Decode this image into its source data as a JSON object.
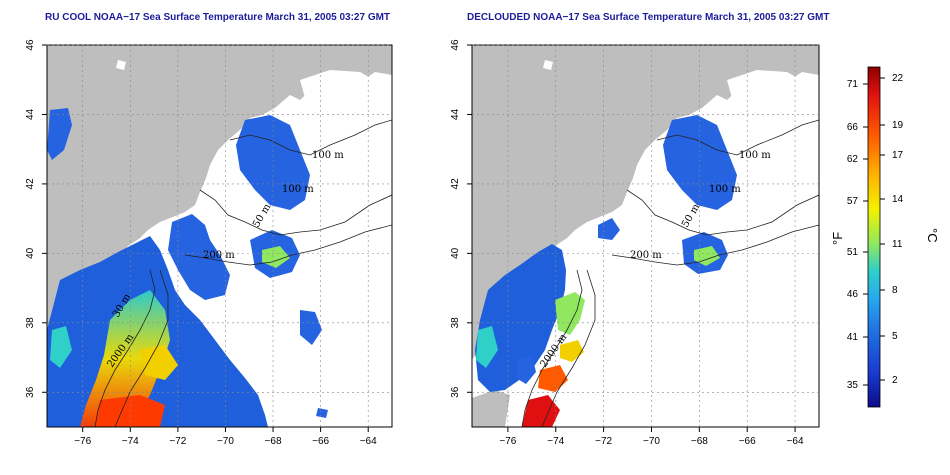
{
  "titles": {
    "left": "RU COOL NOAA−17 Sea Surface Temperature March 31, 2005 03:27 GMT",
    "right": "DECLOUDED NOAA−17 Sea Surface Temperature March 31, 2005 03:27 GMT"
  },
  "map": {
    "lon_ticks": [
      -76,
      -74,
      -72,
      -70,
      -68,
      -66,
      -64
    ],
    "lat_ticks": [
      36,
      38,
      40,
      42,
      44,
      46
    ],
    "lon_tick_labels": [
      "−76",
      "−74",
      "−72",
      "−70",
      "−68",
      "−66",
      "−64"
    ],
    "lat_tick_labels": [
      "36",
      "38",
      "40",
      "42",
      "44",
      "46"
    ],
    "lon_range": [
      -77.5,
      -63.0
    ],
    "lat_range": [
      35.0,
      46.0
    ],
    "land_color": "#bebebe",
    "grid": "dotted"
  },
  "isobaths": {
    "left": {
      "m100": "100 m",
      "m50a": "100 m",
      "m50b": "50 m",
      "m200": "200 m",
      "m30": "30 m",
      "m2000": "2000 m"
    },
    "right": {
      "m100": "100 m",
      "m50a": "100 m",
      "m50b": "50 m",
      "m200": "200 m",
      "m2000": "2000 m"
    }
  },
  "colorbar": {
    "fahrenheit_label": "°F",
    "celsius_label": "°C",
    "fahrenheit_ticks": [
      "71",
      "66",
      "62",
      "57",
      "51",
      "46",
      "41",
      "35"
    ],
    "celsius_ticks": [
      "22",
      "19",
      "17",
      "14",
      "11",
      "8",
      "5",
      "2"
    ],
    "colors": [
      "#8b0000",
      "#e01010",
      "#ff5a00",
      "#ffb400",
      "#f2f200",
      "#8fe860",
      "#2ed0c8",
      "#28a8f0",
      "#2070e0",
      "#1a3ad0",
      "#0c0c88"
    ]
  }
}
